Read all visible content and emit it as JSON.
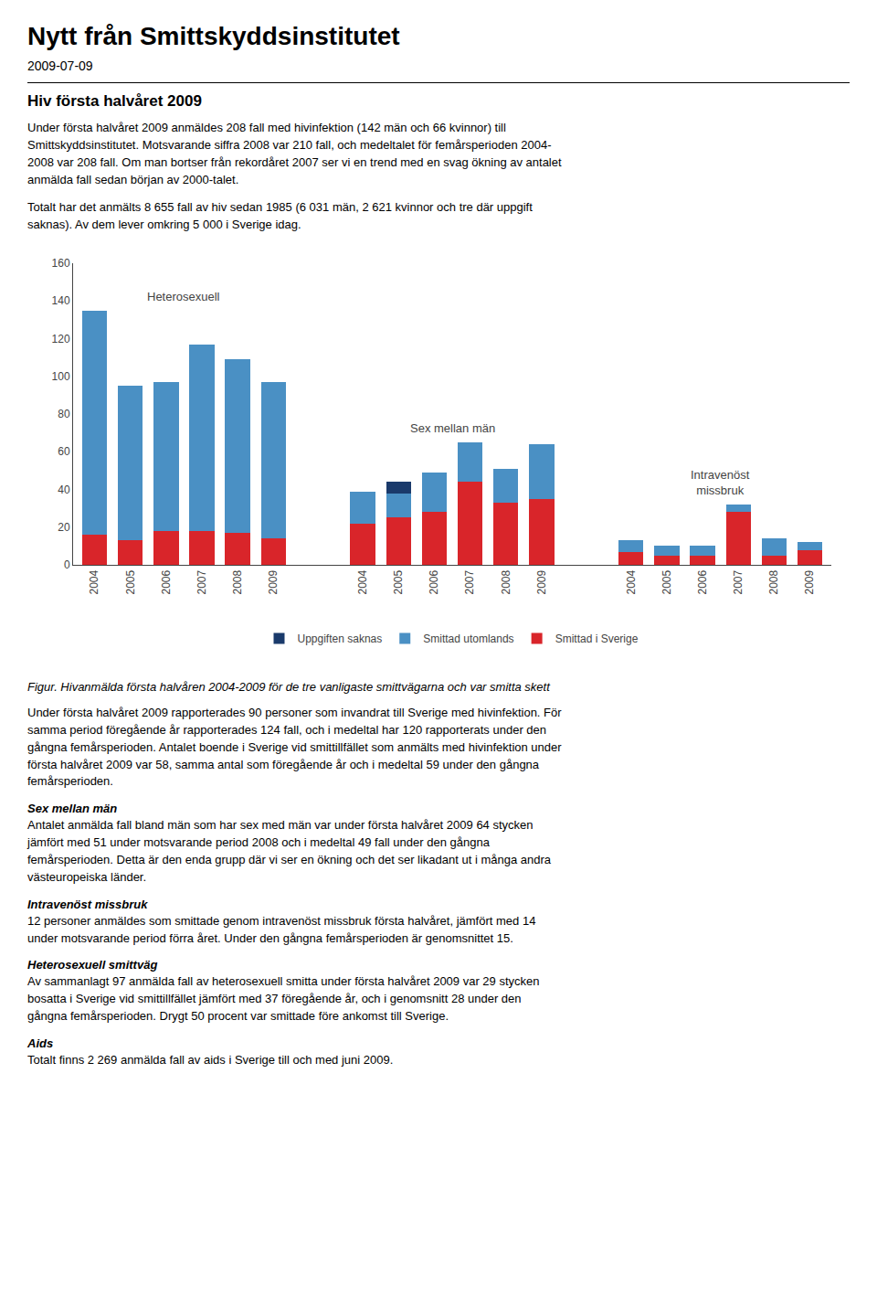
{
  "page": {
    "title": "Nytt från Smittskyddsinstitutet",
    "date": "2009-07-09",
    "section_title": "Hiv första halvåret 2009",
    "paragraphs_before": [
      "Under första halvåret 2009 anmäldes 208 fall med hivinfektion (142 män och 66 kvinnor) till\nSmittskyddsinstitutet. Motsvarande siffra 2008 var 210 fall, och medeltalet för femårsperioden 2004-\n2008 var 208 fall. Om man bortser från rekordåret 2007 ser vi en trend med en svag ökning av antalet\nanmälda fall sedan början av 2000-talet.",
      "Totalt har det anmälts 8 655 fall av hiv sedan 1985 (6 031 män, 2 621 kvinnor och tre där uppgift\nsaknas). Av dem lever omkring 5 000 i Sverige idag."
    ],
    "body_text": "Under första halvåret 2009 rapporterades 90 personer som invandrat till Sverige med hivinfektion. För\nsamma period föregående år rapporterades 124 fall, och i medeltal har 120 rapporterats under den\ngångna femårsperioden. Antalet boende i Sverige vid smittillfället som anmälts med hivinfektion under\nförsta halvåret 2009 var 58, samma antal som föregående år och i medeltal 59 under den gångna\nfemårsperioden.",
    "sections": [
      {
        "header": "Sex mellan män",
        "text": "Antalet anmälda fall bland män som har sex med män var under första halvåret 2009 64 stycken\njämfört med 51 under motsvarande period 2008 och i medeltal 49 fall under den gångna\nfemårsperioden. Detta är den enda grupp där vi ser en ökning och det ser likadant ut i många andra\nvästeuropeiska länder."
      },
      {
        "header": "Intravenöst missbruk",
        "text": "12 personer anmäldes som smittade genom intravenöst missbruk första halvåret, jämfört med 14\nunder motsvarande period förra året. Under den gångna femårsperioden är genomsnittet 15."
      },
      {
        "header": "Heterosexuell smittväg",
        "text": "Av sammanlagt 97 anmälda fall av heterosexuell smitta under första halvåret 2009 var 29 stycken\nbosatta i Sverige vid smittillfället jämfört med 37 föregående år, och i genomsnitt 28 under den\ngångna femårsperioden. Drygt 50 procent var smittade före ankomst till Sverige."
      },
      {
        "header": "Aids",
        "text": "Totalt finns 2 269 anmälda fall av aids i Sverige till och med juni 2009."
      }
    ]
  },
  "chart_data": {
    "type": "bar",
    "stacked": true,
    "caption": "Figur. Hivanmälda första halvåren 2004-2009 för de tre vanligaste smittvägarna och var smitta skett",
    "groups": [
      "Heterosexuell",
      "Sex mellan män",
      "Intravenöst\nmissbruk"
    ],
    "categories": [
      "2004",
      "2005",
      "2006",
      "2007",
      "2008",
      "2009",
      "2004",
      "2005",
      "2006",
      "2007",
      "2008",
      "2009",
      "2004",
      "2005",
      "2006",
      "2007",
      "2008",
      "2009"
    ],
    "series": [
      {
        "name": "Smittad i Sverige",
        "color": "#d9252a",
        "values": [
          16,
          13,
          18,
          18,
          17,
          14,
          22,
          25,
          28,
          44,
          33,
          35,
          7,
          5,
          5,
          28,
          5,
          8
        ]
      },
      {
        "name": "Smittad utomlands",
        "color": "#4a90c4",
        "values": [
          119,
          82,
          79,
          99,
          92,
          83,
          17,
          13,
          21,
          21,
          18,
          29,
          6,
          5,
          5,
          4,
          9,
          4
        ]
      },
      {
        "name": "Uppgiften saknas",
        "color": "#1a3a6b",
        "values": [
          0,
          0,
          0,
          0,
          0,
          0,
          0,
          6,
          0,
          0,
          0,
          0,
          0,
          0,
          0,
          0,
          0,
          0
        ]
      }
    ],
    "ylim": [
      0,
      160
    ],
    "yticks": [
      0,
      20,
      40,
      60,
      80,
      100,
      120,
      140,
      160
    ],
    "grid": false,
    "legend": "bottom"
  }
}
